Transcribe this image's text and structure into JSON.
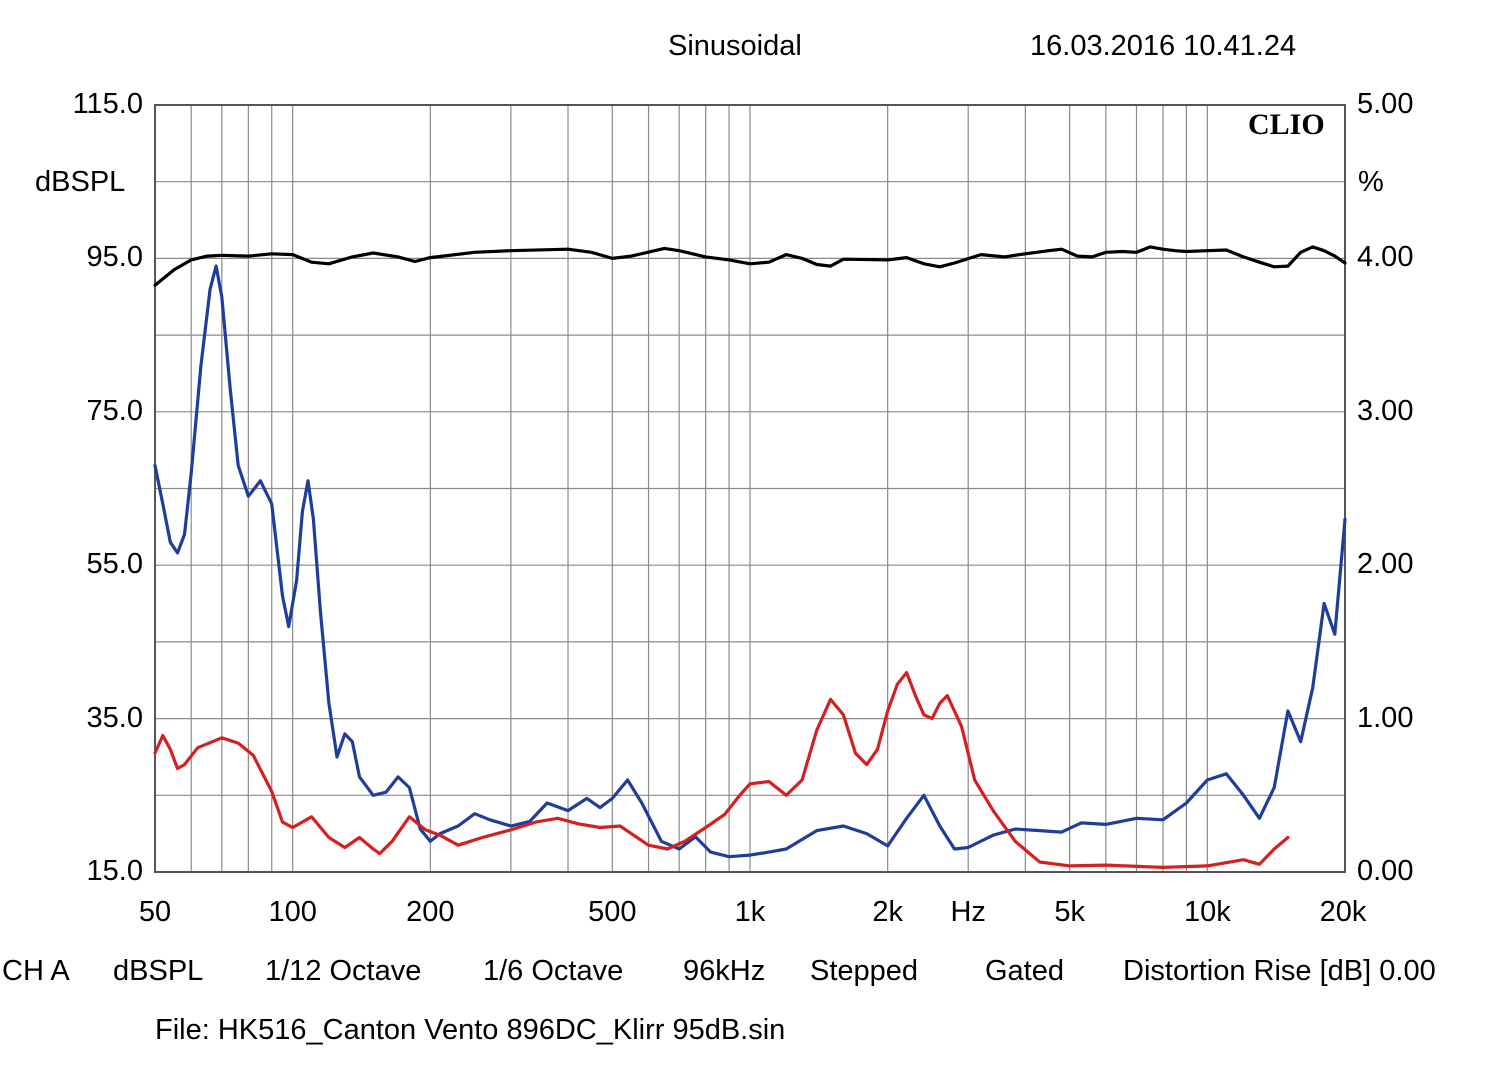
{
  "header": {
    "mode": "Sinusoidal",
    "timestamp": "16.03.2016 10.41.24"
  },
  "brand": "CLIO",
  "footer": {
    "items": [
      "CH A",
      "dBSPL",
      "1/12 Octave",
      "1/6 Octave",
      "96kHz",
      "Stepped",
      "Gated",
      "Distortion Rise [dB] 0.00"
    ],
    "file": "File: HK516_Canton Vento 896DC_Klirr 95dB.sin"
  },
  "chart_data": {
    "type": "line",
    "title": "Sinusoidal",
    "xlabel": "Hz",
    "ylabel": "dBSPL",
    "y2label": "%",
    "xscale": "log",
    "xlim": [
      50,
      20000
    ],
    "ylim": [
      15,
      115
    ],
    "y2lim": [
      0,
      5
    ],
    "grid": true,
    "x_tick_labels": [
      {
        "value": 50,
        "label": "50"
      },
      {
        "value": 100,
        "label": "100"
      },
      {
        "value": 200,
        "label": "200"
      },
      {
        "value": 500,
        "label": "500"
      },
      {
        "value": 1000,
        "label": "1k"
      },
      {
        "value": 2000,
        "label": "2k"
      },
      {
        "value": 3000,
        "label": "Hz"
      },
      {
        "value": 5000,
        "label": "5k"
      },
      {
        "value": 10000,
        "label": "10k"
      },
      {
        "value": 20000,
        "label": "20k"
      }
    ],
    "y_tick_labels": [
      "115.0",
      "95.0",
      "75.0",
      "55.0",
      "35.0",
      "15.0"
    ],
    "y2_tick_labels": [
      "5.00",
      "4.00",
      "3.00",
      "2.00",
      "1.00",
      "0.00"
    ],
    "y_ticks": [
      115,
      95,
      75,
      55,
      35,
      15
    ],
    "series": [
      {
        "color": "#000000",
        "axis": "left",
        "points": [
          [
            50,
            91.5
          ],
          [
            55,
            93.5
          ],
          [
            60,
            94.8
          ],
          [
            65,
            95.3
          ],
          [
            70,
            95.4
          ],
          [
            80,
            95.3
          ],
          [
            90,
            95.6
          ],
          [
            100,
            95.5
          ],
          [
            110,
            94.5
          ],
          [
            120,
            94.3
          ],
          [
            135,
            95.2
          ],
          [
            150,
            95.7
          ],
          [
            170,
            95.2
          ],
          [
            185,
            94.6
          ],
          [
            200,
            95.1
          ],
          [
            250,
            95.8
          ],
          [
            300,
            96.0
          ],
          [
            400,
            96.2
          ],
          [
            450,
            95.8
          ],
          [
            500,
            95.0
          ],
          [
            550,
            95.3
          ],
          [
            650,
            96.3
          ],
          [
            700,
            96.0
          ],
          [
            800,
            95.2
          ],
          [
            900,
            94.8
          ],
          [
            1000,
            94.3
          ],
          [
            1100,
            94.5
          ],
          [
            1200,
            95.5
          ],
          [
            1300,
            95.0
          ],
          [
            1400,
            94.2
          ],
          [
            1500,
            94.0
          ],
          [
            1600,
            94.9
          ],
          [
            2000,
            94.8
          ],
          [
            2200,
            95.1
          ],
          [
            2400,
            94.3
          ],
          [
            2600,
            93.9
          ],
          [
            2800,
            94.4
          ],
          [
            3200,
            95.5
          ],
          [
            3600,
            95.2
          ],
          [
            4000,
            95.6
          ],
          [
            4500,
            96.0
          ],
          [
            4800,
            96.2
          ],
          [
            5200,
            95.3
          ],
          [
            5600,
            95.2
          ],
          [
            6000,
            95.8
          ],
          [
            6500,
            95.9
          ],
          [
            7000,
            95.8
          ],
          [
            7500,
            96.5
          ],
          [
            8000,
            96.2
          ],
          [
            8500,
            96.0
          ],
          [
            9000,
            95.9
          ],
          [
            10000,
            96.0
          ],
          [
            11000,
            96.1
          ],
          [
            12000,
            95.2
          ],
          [
            13000,
            94.5
          ],
          [
            14000,
            93.9
          ],
          [
            15000,
            94.0
          ],
          [
            16000,
            95.8
          ],
          [
            17000,
            96.5
          ],
          [
            18000,
            96.0
          ],
          [
            19000,
            95.3
          ],
          [
            20000,
            94.4
          ]
        ]
      },
      {
        "color": "#1f3d99",
        "axis": "right",
        "points": [
          [
            50,
            2.65
          ],
          [
            52,
            2.4
          ],
          [
            54,
            2.15
          ],
          [
            56,
            2.08
          ],
          [
            58,
            2.2
          ],
          [
            60,
            2.6
          ],
          [
            63,
            3.3
          ],
          [
            66,
            3.8
          ],
          [
            68,
            3.95
          ],
          [
            70,
            3.75
          ],
          [
            73,
            3.15
          ],
          [
            76,
            2.65
          ],
          [
            80,
            2.45
          ],
          [
            85,
            2.55
          ],
          [
            90,
            2.4
          ],
          [
            95,
            1.8
          ],
          [
            98,
            1.6
          ],
          [
            102,
            1.9
          ],
          [
            105,
            2.35
          ],
          [
            108,
            2.55
          ],
          [
            111,
            2.3
          ],
          [
            115,
            1.7
          ],
          [
            120,
            1.1
          ],
          [
            125,
            0.75
          ],
          [
            130,
            0.9
          ],
          [
            135,
            0.85
          ],
          [
            140,
            0.62
          ],
          [
            150,
            0.5
          ],
          [
            160,
            0.52
          ],
          [
            170,
            0.62
          ],
          [
            180,
            0.55
          ],
          [
            190,
            0.28
          ],
          [
            200,
            0.2
          ],
          [
            210,
            0.25
          ],
          [
            230,
            0.3
          ],
          [
            250,
            0.38
          ],
          [
            270,
            0.34
          ],
          [
            300,
            0.3
          ],
          [
            330,
            0.33
          ],
          [
            360,
            0.45
          ],
          [
            400,
            0.4
          ],
          [
            440,
            0.48
          ],
          [
            470,
            0.42
          ],
          [
            500,
            0.48
          ],
          [
            540,
            0.6
          ],
          [
            580,
            0.45
          ],
          [
            640,
            0.2
          ],
          [
            700,
            0.15
          ],
          [
            760,
            0.23
          ],
          [
            820,
            0.13
          ],
          [
            900,
            0.1
          ],
          [
            1000,
            0.11
          ],
          [
            1100,
            0.13
          ],
          [
            1200,
            0.15
          ],
          [
            1400,
            0.27
          ],
          [
            1600,
            0.3
          ],
          [
            1800,
            0.25
          ],
          [
            2000,
            0.17
          ],
          [
            2200,
            0.35
          ],
          [
            2400,
            0.5
          ],
          [
            2600,
            0.3
          ],
          [
            2800,
            0.15
          ],
          [
            3000,
            0.16
          ],
          [
            3400,
            0.24
          ],
          [
            3800,
            0.28
          ],
          [
            4300,
            0.27
          ],
          [
            4800,
            0.26
          ],
          [
            5300,
            0.32
          ],
          [
            6000,
            0.31
          ],
          [
            7000,
            0.35
          ],
          [
            8000,
            0.34
          ],
          [
            9000,
            0.45
          ],
          [
            10000,
            0.6
          ],
          [
            11000,
            0.64
          ],
          [
            12000,
            0.5
          ],
          [
            13000,
            0.35
          ],
          [
            14000,
            0.55
          ],
          [
            15000,
            1.05
          ],
          [
            16000,
            0.85
          ],
          [
            17000,
            1.2
          ],
          [
            18000,
            1.75
          ],
          [
            19000,
            1.55
          ],
          [
            20000,
            2.3
          ]
        ]
      },
      {
        "color": "#d42020",
        "axis": "left",
        "points": [
          [
            50,
            30.5
          ],
          [
            52,
            32.8
          ],
          [
            54,
            31.0
          ],
          [
            56,
            28.5
          ],
          [
            58,
            29.0
          ],
          [
            62,
            31.2
          ],
          [
            70,
            32.5
          ],
          [
            76,
            31.8
          ],
          [
            82,
            30.2
          ],
          [
            90,
            25.5
          ],
          [
            95,
            21.5
          ],
          [
            100,
            20.8
          ],
          [
            110,
            22.2
          ],
          [
            120,
            19.5
          ],
          [
            130,
            18.2
          ],
          [
            140,
            19.5
          ],
          [
            150,
            18.0
          ],
          [
            155,
            17.4
          ],
          [
            165,
            19.0
          ],
          [
            180,
            22.2
          ],
          [
            195,
            20.5
          ],
          [
            210,
            19.8
          ],
          [
            230,
            18.5
          ],
          [
            260,
            19.5
          ],
          [
            300,
            20.5
          ],
          [
            340,
            21.5
          ],
          [
            380,
            22.0
          ],
          [
            420,
            21.3
          ],
          [
            470,
            20.8
          ],
          [
            520,
            21.0
          ],
          [
            600,
            18.5
          ],
          [
            660,
            18.0
          ],
          [
            720,
            19.0
          ],
          [
            800,
            20.8
          ],
          [
            880,
            22.5
          ],
          [
            950,
            25.0
          ],
          [
            1000,
            26.5
          ],
          [
            1100,
            26.8
          ],
          [
            1200,
            25.0
          ],
          [
            1300,
            27.0
          ],
          [
            1400,
            33.5
          ],
          [
            1500,
            37.5
          ],
          [
            1600,
            35.5
          ],
          [
            1700,
            30.5
          ],
          [
            1800,
            29.0
          ],
          [
            1900,
            31.0
          ],
          [
            2000,
            36.0
          ],
          [
            2100,
            39.5
          ],
          [
            2200,
            41.0
          ],
          [
            2300,
            38.0
          ],
          [
            2400,
            35.5
          ],
          [
            2500,
            35.0
          ],
          [
            2600,
            37.0
          ],
          [
            2700,
            38.0
          ],
          [
            2900,
            34.0
          ],
          [
            3100,
            27.0
          ],
          [
            3400,
            23.0
          ],
          [
            3800,
            19.0
          ],
          [
            4300,
            16.3
          ],
          [
            5000,
            15.8
          ],
          [
            6000,
            15.9
          ],
          [
            8000,
            15.6
          ],
          [
            10000,
            15.8
          ],
          [
            12000,
            16.6
          ],
          [
            13000,
            16.0
          ],
          [
            14000,
            18.0
          ],
          [
            15000,
            19.5
          ]
        ]
      }
    ]
  }
}
